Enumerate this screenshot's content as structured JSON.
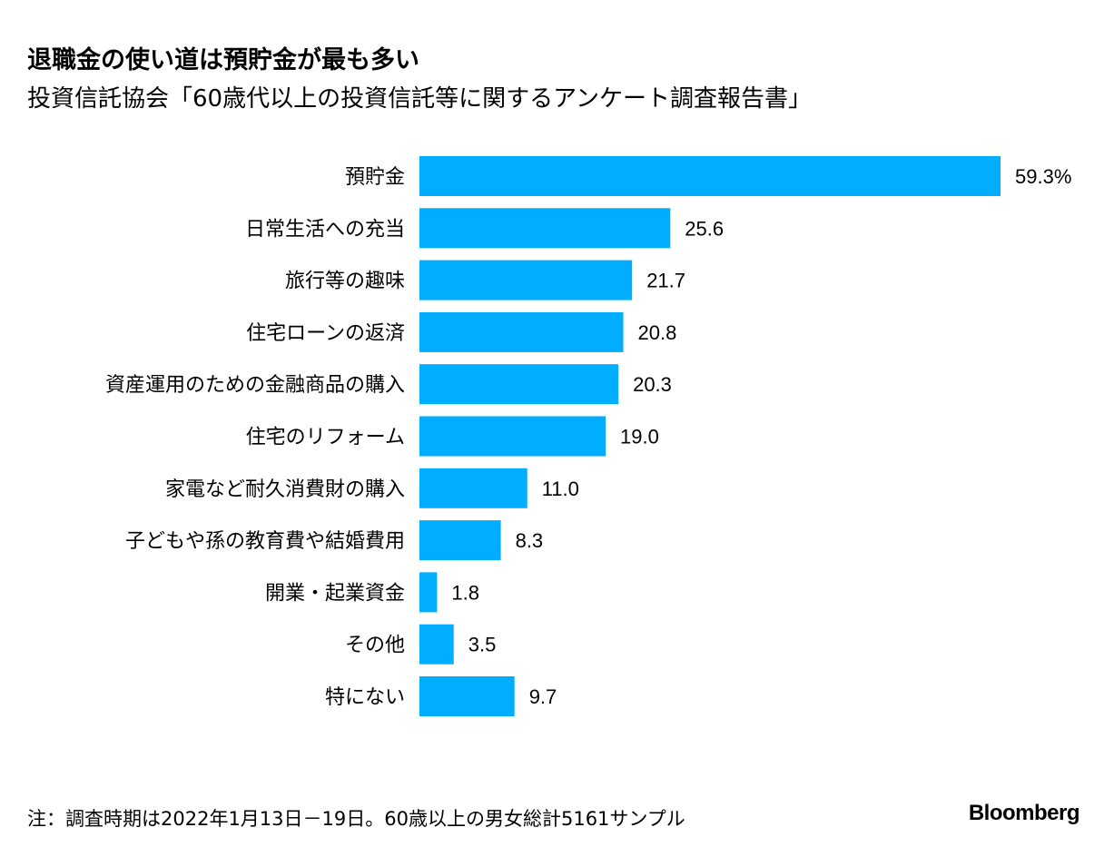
{
  "chart_data": {
    "type": "bar",
    "orientation": "horizontal",
    "title": "退職金の使い道は預貯金が最も多い",
    "subtitle": "投資信託協会「60歳代以上の投資信託等に関するアンケート調査報告書」",
    "categories": [
      "預貯金",
      "日常生活への充当",
      "旅行等の趣味",
      "住宅ローンの返済",
      "資産運用のための金融商品の購入",
      "住宅のリフォーム",
      "家電など耐久消費財の購入",
      "子どもや孫の教育費や結婚費用",
      "開業・起業資金",
      "その他",
      "特にない"
    ],
    "values": [
      59.3,
      25.6,
      21.7,
      20.8,
      20.3,
      19.0,
      11.0,
      8.3,
      1.8,
      3.5,
      9.7
    ],
    "value_labels": [
      "59.3%",
      "25.6",
      "21.7",
      "20.8",
      "20.3",
      "19.0",
      "11.0",
      "8.3",
      "1.8",
      "3.5",
      "9.7"
    ],
    "bar_color": "#00adfe",
    "xlim": [
      0,
      59.3
    ],
    "grid": false,
    "legend": "none",
    "xlabel": "",
    "ylabel": ""
  },
  "footnote": "注：調査時期は2022年1月13日－19日。60歳以上の男女総計5161サンプル",
  "brand": "Bloomberg"
}
